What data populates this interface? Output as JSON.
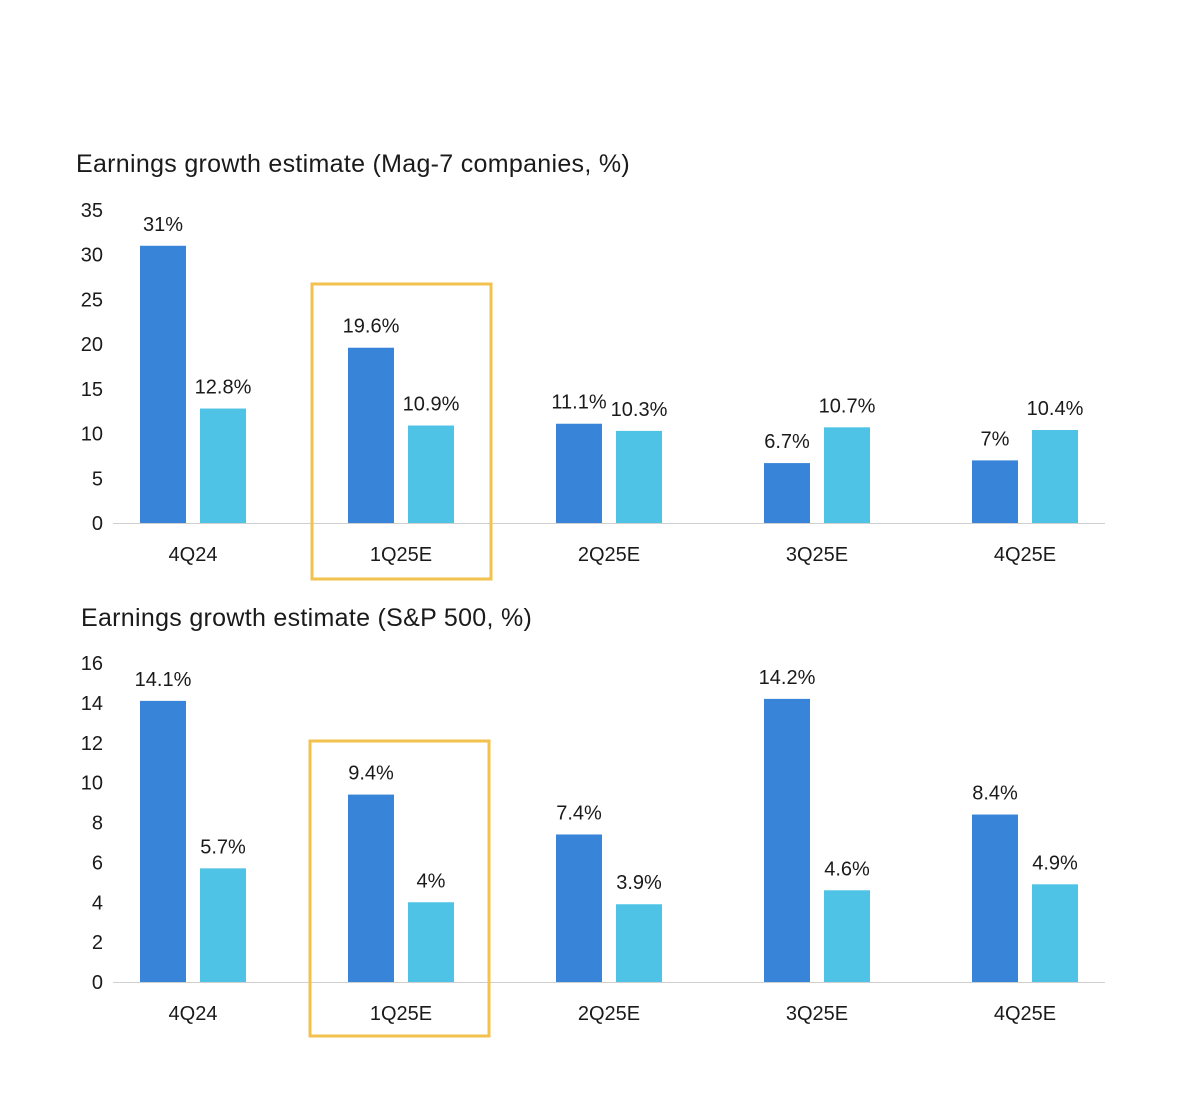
{
  "colors": {
    "series_1": "#3784d8",
    "series_2": "#4fc3e5",
    "highlight": "#f2c14e",
    "axis": "#cfcfcf"
  },
  "chart_data": [
    {
      "type": "bar",
      "title": "Earnings growth estimate (Mag-7 companies, %)",
      "categories": [
        "4Q24",
        "1Q25E",
        "2Q25E",
        "3Q25E",
        "4Q25E"
      ],
      "series": [
        {
          "values": [
            31,
            19.6,
            11.1,
            6.7,
            7
          ],
          "labels": [
            "31%",
            "19.6%",
            "11.1%",
            "6.7%",
            "7%"
          ]
        },
        {
          "values": [
            12.8,
            10.9,
            10.3,
            10.7,
            10.4
          ],
          "labels": [
            "12.8%",
            "10.9%",
            "10.3%",
            "10.7%",
            "10.4%"
          ]
        }
      ],
      "yticks": [
        "0",
        "5",
        "10",
        "15",
        "20",
        "25",
        "30",
        "35"
      ],
      "ylim": [
        0,
        35
      ],
      "highlighted_category": "1Q25E",
      "grid": false
    },
    {
      "type": "bar",
      "title": "Earnings growth estimate (S&P 500, %)",
      "categories": [
        "4Q24",
        "1Q25E",
        "2Q25E",
        "3Q25E",
        "4Q25E"
      ],
      "series": [
        {
          "values": [
            14.1,
            9.4,
            7.4,
            14.2,
            8.4
          ],
          "labels": [
            "14.1%",
            "9.4%",
            "7.4%",
            "14.2%",
            "8.4%"
          ]
        },
        {
          "values": [
            5.7,
            4,
            3.9,
            4.6,
            4.9
          ],
          "labels": [
            "5.7%",
            "4%",
            "3.9%",
            "4.6%",
            "4.9%"
          ]
        }
      ],
      "yticks": [
        "0",
        "2",
        "4",
        "6",
        "8",
        "10",
        "12",
        "14",
        "16"
      ],
      "ylim": [
        0,
        16
      ],
      "highlighted_category": "1Q25E",
      "grid": false
    }
  ]
}
